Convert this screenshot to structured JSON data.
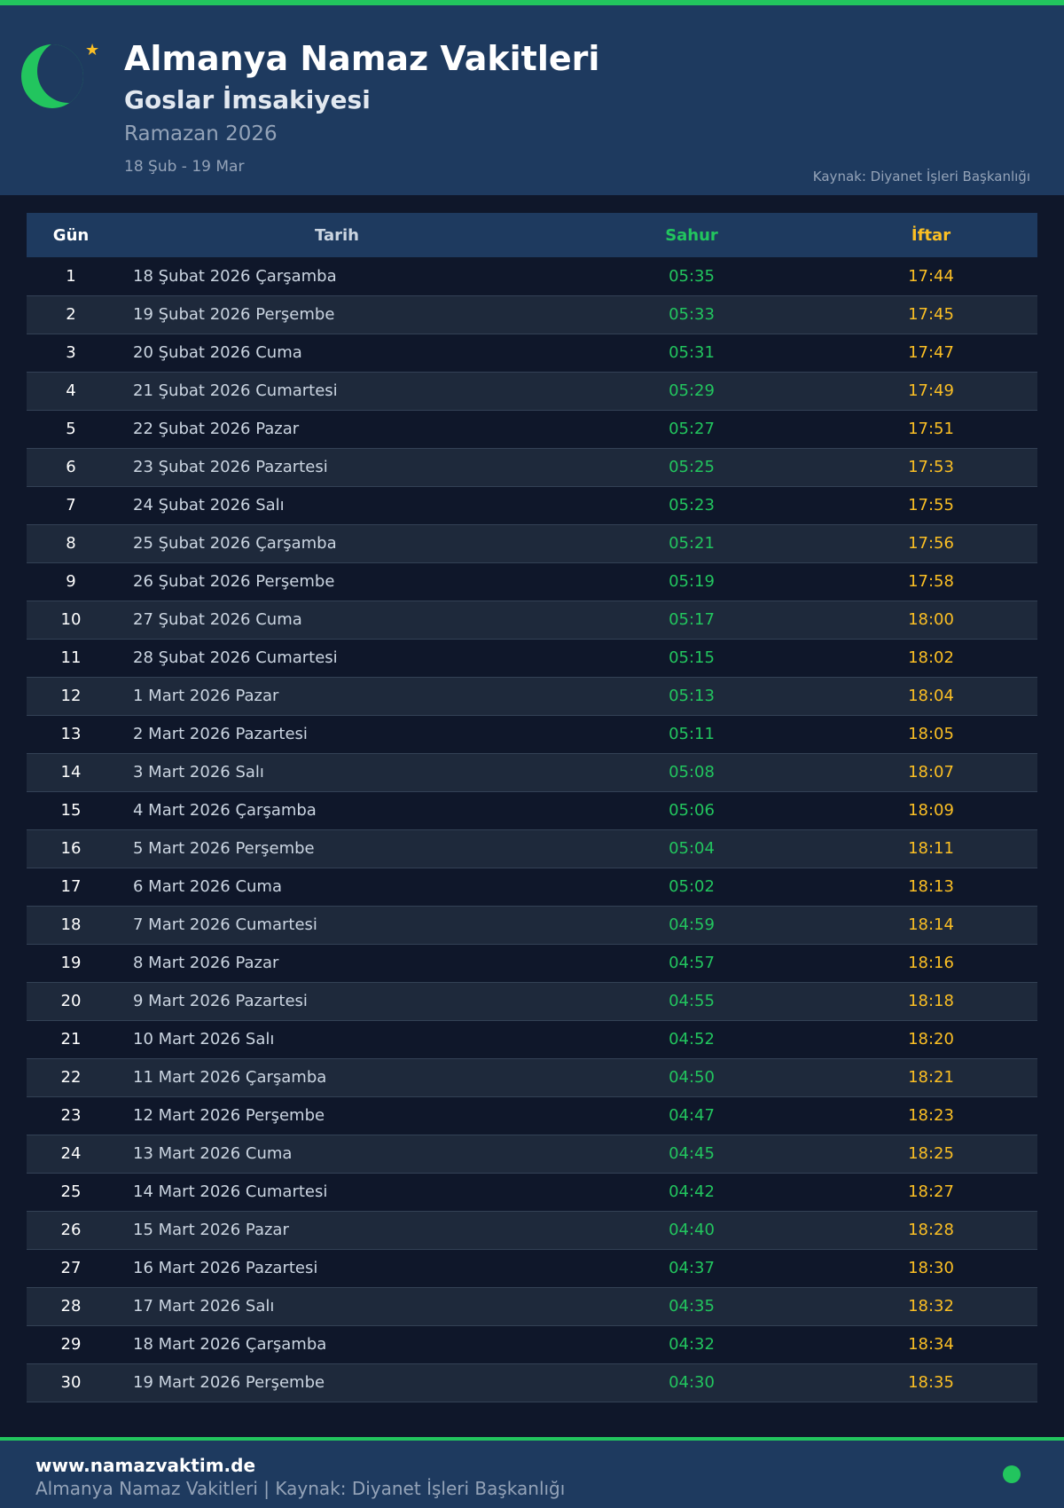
{
  "header": {
    "title": "Almanya Namaz Vakitleri",
    "subtitle": "Goslar İmsakiyesi",
    "year": "Ramazan 2026",
    "range": "18 Şub - 19 Mar",
    "source": "Kaynak: Diyanet İşleri Başkanlığı"
  },
  "colors": {
    "accent": "#22c55e",
    "iftar": "#fbbf24",
    "header_bg": "#1e3a5f",
    "page_bg": "#0f172a"
  },
  "table": {
    "columns": [
      "Gün",
      "Tarih",
      "Sahur",
      "İftar"
    ],
    "rows": [
      [
        "1",
        "18 Şubat 2026 Çarşamba",
        "05:35",
        "17:44"
      ],
      [
        "2",
        "19 Şubat 2026 Perşembe",
        "05:33",
        "17:45"
      ],
      [
        "3",
        "20 Şubat 2026 Cuma",
        "05:31",
        "17:47"
      ],
      [
        "4",
        "21 Şubat 2026 Cumartesi",
        "05:29",
        "17:49"
      ],
      [
        "5",
        "22 Şubat 2026 Pazar",
        "05:27",
        "17:51"
      ],
      [
        "6",
        "23 Şubat 2026 Pazartesi",
        "05:25",
        "17:53"
      ],
      [
        "7",
        "24 Şubat 2026 Salı",
        "05:23",
        "17:55"
      ],
      [
        "8",
        "25 Şubat 2026 Çarşamba",
        "05:21",
        "17:56"
      ],
      [
        "9",
        "26 Şubat 2026 Perşembe",
        "05:19",
        "17:58"
      ],
      [
        "10",
        "27 Şubat 2026 Cuma",
        "05:17",
        "18:00"
      ],
      [
        "11",
        "28 Şubat 2026 Cumartesi",
        "05:15",
        "18:02"
      ],
      [
        "12",
        "1 Mart 2026 Pazar",
        "05:13",
        "18:04"
      ],
      [
        "13",
        "2 Mart 2026 Pazartesi",
        "05:11",
        "18:05"
      ],
      [
        "14",
        "3 Mart 2026 Salı",
        "05:08",
        "18:07"
      ],
      [
        "15",
        "4 Mart 2026 Çarşamba",
        "05:06",
        "18:09"
      ],
      [
        "16",
        "5 Mart 2026 Perşembe",
        "05:04",
        "18:11"
      ],
      [
        "17",
        "6 Mart 2026 Cuma",
        "05:02",
        "18:13"
      ],
      [
        "18",
        "7 Mart 2026 Cumartesi",
        "04:59",
        "18:14"
      ],
      [
        "19",
        "8 Mart 2026 Pazar",
        "04:57",
        "18:16"
      ],
      [
        "20",
        "9 Mart 2026 Pazartesi",
        "04:55",
        "18:18"
      ],
      [
        "21",
        "10 Mart 2026 Salı",
        "04:52",
        "18:20"
      ],
      [
        "22",
        "11 Mart 2026 Çarşamba",
        "04:50",
        "18:21"
      ],
      [
        "23",
        "12 Mart 2026 Perşembe",
        "04:47",
        "18:23"
      ],
      [
        "24",
        "13 Mart 2026 Cuma",
        "04:45",
        "18:25"
      ],
      [
        "25",
        "14 Mart 2026 Cumartesi",
        "04:42",
        "18:27"
      ],
      [
        "26",
        "15 Mart 2026 Pazar",
        "04:40",
        "18:28"
      ],
      [
        "27",
        "16 Mart 2026 Pazartesi",
        "04:37",
        "18:30"
      ],
      [
        "28",
        "17 Mart 2026 Salı",
        "04:35",
        "18:32"
      ],
      [
        "29",
        "18 Mart 2026 Çarşamba",
        "04:32",
        "18:34"
      ],
      [
        "30",
        "19 Mart 2026 Perşembe",
        "04:30",
        "18:35"
      ]
    ]
  },
  "footer": {
    "site": "www.namazvaktim.de",
    "info": "Almanya Namaz Vakitleri | Kaynak: Diyanet İşleri Başkanlığı"
  }
}
